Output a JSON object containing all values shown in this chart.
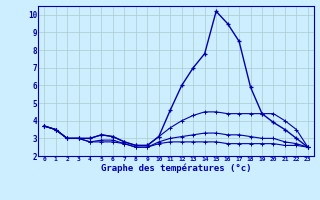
{
  "x": [
    0,
    1,
    2,
    3,
    4,
    5,
    6,
    7,
    8,
    9,
    10,
    11,
    12,
    13,
    14,
    15,
    16,
    17,
    18,
    19,
    20,
    21,
    22,
    23
  ],
  "line1": [
    3.7,
    3.5,
    3.0,
    3.0,
    3.0,
    3.2,
    3.1,
    2.8,
    2.6,
    2.6,
    3.1,
    4.6,
    6.0,
    7.0,
    7.8,
    10.2,
    9.5,
    8.5,
    5.9,
    4.4,
    3.9,
    3.5,
    3.0,
    2.5
  ],
  "line2": [
    3.7,
    3.5,
    3.0,
    3.0,
    3.0,
    3.2,
    3.1,
    2.8,
    2.6,
    2.6,
    3.1,
    3.6,
    4.0,
    4.3,
    4.5,
    4.5,
    4.4,
    4.4,
    4.4,
    4.4,
    4.4,
    4.0,
    3.5,
    2.5
  ],
  "line3": [
    3.7,
    3.5,
    3.0,
    3.0,
    2.8,
    2.9,
    2.9,
    2.7,
    2.5,
    2.5,
    2.8,
    3.0,
    3.1,
    3.2,
    3.3,
    3.3,
    3.2,
    3.2,
    3.1,
    3.0,
    3.0,
    2.8,
    2.7,
    2.5
  ],
  "line4": [
    3.7,
    3.5,
    3.0,
    3.0,
    2.8,
    2.8,
    2.8,
    2.7,
    2.5,
    2.5,
    2.7,
    2.8,
    2.8,
    2.8,
    2.8,
    2.8,
    2.7,
    2.7,
    2.7,
    2.7,
    2.7,
    2.6,
    2.6,
    2.5
  ],
  "bg_color": "#cceeff",
  "line_color": "#0000aa",
  "grid_color": "#aacccc",
  "xlabel": "Graphe des températures (°c)",
  "ylim": [
    2,
    10.5
  ],
  "xlim": [
    -0.5,
    23.5
  ],
  "yticks": [
    2,
    3,
    4,
    5,
    6,
    7,
    8,
    9,
    10
  ],
  "xticks": [
    0,
    1,
    2,
    3,
    4,
    5,
    6,
    7,
    8,
    9,
    10,
    11,
    12,
    13,
    14,
    15,
    16,
    17,
    18,
    19,
    20,
    21,
    22,
    23
  ]
}
